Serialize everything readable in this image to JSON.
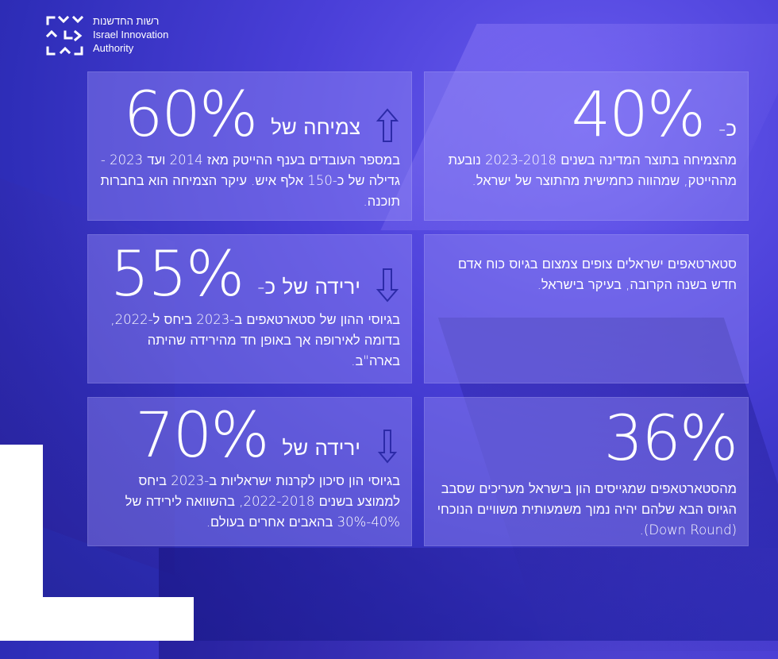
{
  "logo": {
    "hebrew": "רשות החדשנות",
    "english_line1": "Israel Innovation",
    "english_line2": "Authority"
  },
  "cards": [
    {
      "big": "40%",
      "kicker": "כ-",
      "body": "מהצמיחה בתוצר המדינה בשנים 2023-2018 נובעת מההייטק, שמהווה כחמישית מהתוצר של ישראל."
    },
    {
      "big": "60%",
      "kicker": "צמיחה של",
      "arrow": "up-arrow-icon",
      "body": "במספר העובדים בענף ההייטק מאז 2014 ועד 2023 - גדילה של כ-150 אלף איש. עיקר הצמיחה הוא בחברות תוכנה."
    },
    {
      "big": "",
      "kicker": "",
      "body": "סטארטאפים ישראלים צופים צמצום בגיוס כוח אדם חדש בשנה הקרובה, בעיקר בישראל."
    },
    {
      "big": "55%",
      "kicker": "ירידה של כ-",
      "arrow": "down-arrow-icon",
      "body": "בגיוסי ההון של סטארטאפים ב-2023 ביחס ל-2022, בדומה לאירופה אך באופן חד מהירידה שהיתה בארה\"ב."
    },
    {
      "big": "36%",
      "kicker": "",
      "body": "מהסטארטאפים שמגייסים הון בישראל מעריכים שסבב הגיוס הבא שלהם יהיה נמוך משמעותית משוויים הנוכחי (Down Round)."
    },
    {
      "big": "70%",
      "kicker": "ירידה של",
      "arrow": "down-arrow-icon",
      "body": "בגיוסי הון סיכון לקרנות ישראליות ב-2023 ביחס לממוצע בשנים 2022-2018, בהשוואה לירידה של 40%-30% בהאבים אחרים בעולם."
    }
  ],
  "colors": {
    "background": "#3a34c8",
    "card": "#9b8cf5",
    "arrow": "#2c2aa8"
  }
}
